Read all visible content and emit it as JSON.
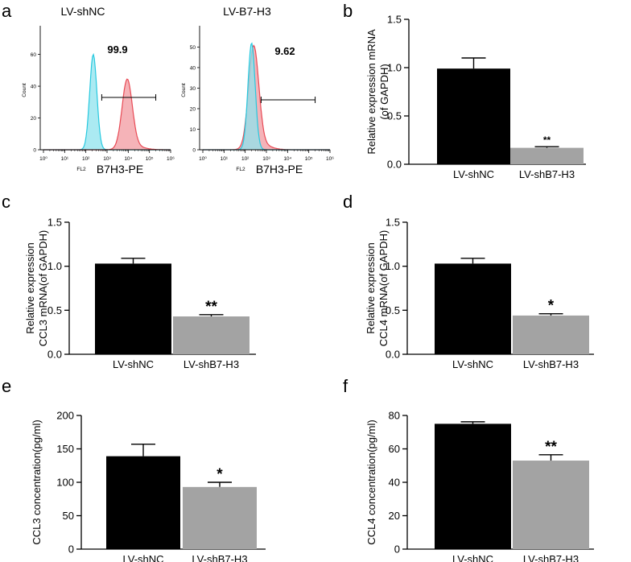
{
  "colors": {
    "black_bar": "#000000",
    "gray_bar": "#a3a3a3",
    "histogram_control": "#27c9df",
    "histogram_control_fill": "#8fe3ee",
    "histogram_sample": "#e84a55",
    "histogram_sample_fill": "#f29aa0",
    "axis": "#000000"
  },
  "panel_letters": {
    "a": "a",
    "b": "b",
    "c": "c",
    "d": "d",
    "e": "e",
    "f": "f"
  },
  "chart_data": [
    {
      "panel": "a-left",
      "type": "histogram",
      "title": "LV-shNC",
      "ylabel": "Count",
      "xlabel_prefix": "FL2",
      "xlabel": "B7H3-PE",
      "x_scale": "log",
      "x_ticks": [
        "10⁰",
        "10¹",
        "10²",
        "10³",
        "10⁴",
        "10⁵",
        "10⁶"
      ],
      "y_ticks": [
        0,
        20,
        40,
        60
      ],
      "ylim": [
        0,
        75
      ],
      "gate_label": "99.9",
      "gate_range_log10": [
        2.75,
        5.3
      ],
      "peaks": [
        {
          "name": "control",
          "center_log10": 2.35,
          "width_log10": 0.17,
          "height": 60
        },
        {
          "name": "sample",
          "center_log10": 3.95,
          "width_log10": 0.24,
          "height": 43
        }
      ]
    },
    {
      "panel": "a-right",
      "type": "histogram",
      "title": "LV-B7-H3",
      "ylabel": "Count",
      "xlabel_prefix": "FL2",
      "xlabel": "B7H3-PE",
      "x_scale": "log",
      "x_ticks": [
        "10⁰",
        "10¹",
        "10²",
        "10³",
        "10⁴",
        "10⁵",
        "10⁶"
      ],
      "y_ticks": [
        0,
        10,
        20,
        30,
        40,
        50
      ],
      "ylim": [
        0,
        58
      ],
      "gate_label": "9.62",
      "gate_range_log10": [
        2.75,
        5.3
      ],
      "peaks": [
        {
          "name": "control",
          "center_log10": 2.3,
          "width_log10": 0.17,
          "height": 52
        },
        {
          "name": "sample",
          "center_log10": 2.4,
          "width_log10": 0.24,
          "height": 49
        }
      ]
    },
    {
      "panel": "b",
      "type": "bar",
      "ylabel_lines": [
        "Relative expression mRNA",
        "(of GAPDH)"
      ],
      "categories": [
        "LV-shNC",
        "LV-shB7-H3"
      ],
      "values": [
        0.99,
        0.17
      ],
      "errors": [
        0.11,
        0.012
      ],
      "ylim": [
        0,
        1.5
      ],
      "yticks": [
        0.0,
        0.5,
        1.0,
        1.5
      ],
      "ytick_labels": [
        "0.0",
        "0.5",
        "1.0",
        "1.5"
      ],
      "significance": [
        "",
        "**"
      ]
    },
    {
      "panel": "c",
      "type": "bar",
      "ylabel_lines": [
        "Relative expression",
        "CCL3 mRNA(of GAPDH)"
      ],
      "categories": [
        "LV-shNC",
        "LV-shB7-H3"
      ],
      "values": [
        1.03,
        0.43
      ],
      "errors": [
        0.06,
        0.02
      ],
      "ylim": [
        0,
        1.5
      ],
      "yticks": [
        0.0,
        0.5,
        1.0,
        1.5
      ],
      "ytick_labels": [
        "0.0",
        "0.5",
        "1.0",
        "1.5"
      ],
      "significance": [
        "",
        "**"
      ]
    },
    {
      "panel": "d",
      "type": "bar",
      "ylabel_lines": [
        "Relative expression",
        "CCL4 mRNA(of GAPDH)"
      ],
      "categories": [
        "LV-shNC",
        "LV-shB7-H3"
      ],
      "values": [
        1.03,
        0.44
      ],
      "errors": [
        0.06,
        0.02
      ],
      "ylim": [
        0,
        1.5
      ],
      "yticks": [
        0.0,
        0.5,
        1.0,
        1.5
      ],
      "ytick_labels": [
        "0.0",
        "0.5",
        "1.0",
        "1.5"
      ],
      "significance": [
        "",
        "*"
      ]
    },
    {
      "panel": "e",
      "type": "bar",
      "ylabel_lines": [
        "CCL3 concentration(pg/ml)"
      ],
      "categories": [
        "LV-shNC",
        "LV-shB7-H3"
      ],
      "values": [
        139,
        93
      ],
      "errors": [
        18,
        7
      ],
      "ylim": [
        0,
        200
      ],
      "yticks": [
        0,
        50,
        100,
        150,
        200
      ],
      "ytick_labels": [
        "0",
        "50",
        "100",
        "150",
        "200"
      ],
      "significance": [
        "",
        "*"
      ]
    },
    {
      "panel": "f",
      "type": "bar",
      "ylabel_lines": [
        "CCL4 concentration(pg/ml)"
      ],
      "categories": [
        "LV-shNC",
        "LV-shB7-H3"
      ],
      "values": [
        75,
        53
      ],
      "errors": [
        1.2,
        3.5
      ],
      "ylim": [
        0,
        80
      ],
      "yticks": [
        0,
        20,
        40,
        60,
        80
      ],
      "ytick_labels": [
        "0",
        "20",
        "40",
        "60",
        "80"
      ],
      "significance": [
        "",
        "**"
      ]
    }
  ]
}
